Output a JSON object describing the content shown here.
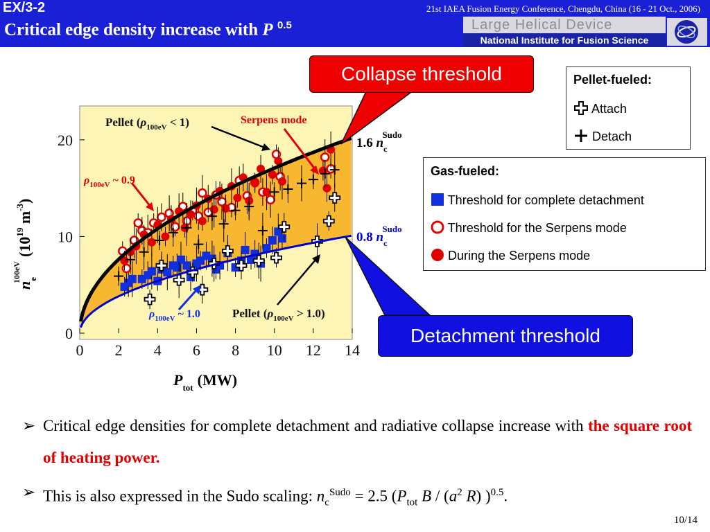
{
  "header": {
    "slide_id": "EX/3-2",
    "conference": "21st IAEA Fusion Energy Conference, Chengdu, China (16 - 21 Oct., 2006)",
    "title": "Critical edge density increase with ",
    "title_var": "P",
    "title_exp": "0.5",
    "logo_line1": "Large Helical Device",
    "logo_line2": "National Institute for Fusion Science"
  },
  "callouts": {
    "collapse": "Collapse threshold",
    "detachment": "Detachment threshold"
  },
  "pellet_legend": {
    "title": "Pellet-fueled:",
    "attach": "Attach",
    "detach": "Detach"
  },
  "gas_legend": {
    "title": "Gas-fueled:",
    "complete_detachment": "Threshold for complete detachment",
    "serpens_threshold": "Threshold for the Serpens mode",
    "during_serpens": "During the Serpens mode"
  },
  "chart_data": {
    "type": "scatter",
    "xlabel": "P",
    "xlabel_sub": "tot",
    "xlabel_unit": "(MW)",
    "ylabel": "n",
    "ylabel_sub": "e",
    "ylabel_sup": "100eV",
    "ylabel_unit": "(10",
    "ylabel_unit_exp": "19",
    "ylabel_unit_rest": " m",
    "ylabel_unit_exp2": "-3",
    "ylabel_unit_close": ")",
    "xlim": [
      0,
      14
    ],
    "ylim": [
      0,
      23.5
    ],
    "xticks": [
      "0",
      "2",
      "4",
      "6",
      "8",
      "10",
      "12",
      "14"
    ],
    "yticks": [
      "0",
      "10",
      "20"
    ],
    "curves": [
      {
        "name": "1.6 n_c^Sudo",
        "label_main": "1.6 ",
        "label_var": "n",
        "label_sub": "c",
        "label_sup": "Sudo",
        "coef": 5.4,
        "color": "#000000"
      },
      {
        "name": "0.8 n_c^Sudo",
        "label_main": "0.8 ",
        "label_var": "n",
        "label_sub": "c",
        "label_sup": "Sudo",
        "coef": 2.7,
        "color": "#0000cc"
      }
    ],
    "annotations": {
      "pellet_low_a": "Pellet (",
      "pellet_low_rho": "ρ",
      "pellet_low_sub": "100eV",
      "pellet_low_b": " < 1)",
      "serpens": "Serpens mode",
      "rho_09_sub": "100eV",
      "rho_09_val": " ~ 0.9",
      "rho_10_sub": "100eV",
      "rho_10_val": " ~ 1.0",
      "pellet_high_a": "Pellet (",
      "pellet_high_sub": "100eV",
      "pellet_high_b": " > 1.0)"
    },
    "series": [
      {
        "name": "Threshold for complete detachment",
        "marker": "square",
        "color": "#1030e0",
        "x": [
          2.3,
          2.5,
          2.7,
          3.2,
          3.5,
          3.7,
          4.0,
          4.2,
          4.5,
          4.8,
          5.0,
          5.2,
          5.5,
          5.7,
          6.0,
          6.2,
          6.5,
          6.8,
          7.0,
          7.2,
          7.6,
          8.0,
          8.3,
          8.5,
          8.8,
          9.0,
          9.3,
          9.6,
          9.9,
          10.2,
          10.4
        ],
        "y": [
          4.8,
          5.2,
          5.6,
          5.6,
          6.0,
          6.4,
          5.4,
          6.6,
          6.3,
          7.0,
          6.8,
          7.6,
          7.0,
          5.8,
          7.2,
          7.5,
          8.0,
          7.7,
          6.6,
          7.0,
          8.3,
          6.8,
          7.5,
          8.6,
          7.6,
          8.2,
          7.2,
          8.8,
          9.6,
          10.5,
          9.8
        ]
      },
      {
        "name": "Threshold for the Serpens mode",
        "marker": "open-circle",
        "color": "#e00000",
        "x": [
          2.2,
          2.4,
          2.8,
          3.0,
          3.2,
          3.5,
          3.8,
          4.2,
          4.6,
          4.9,
          5.3,
          5.5,
          5.8,
          6.1,
          6.3,
          6.6,
          7.0,
          7.3,
          7.8,
          8.2,
          8.6,
          9.0,
          9.4,
          9.8,
          10.1,
          10.3,
          12.6,
          12.9
        ],
        "y": [
          8.5,
          6.7,
          9.6,
          11.4,
          10.6,
          10.4,
          11.4,
          12.0,
          12.4,
          11.0,
          13.1,
          11.6,
          12.7,
          12.1,
          14.5,
          12.5,
          14.3,
          13.6,
          13.0,
          15.8,
          14.2,
          15.6,
          14.6,
          13.8,
          18.5,
          16.2,
          18.2,
          17.0
        ]
      },
      {
        "name": "During the Serpens mode",
        "marker": "circle",
        "color": "#e00000",
        "x": [
          2.3,
          2.6,
          2.9,
          3.3,
          3.7,
          4.0,
          4.4,
          4.7,
          5.1,
          5.4,
          5.7,
          6.0,
          6.3,
          6.6,
          6.9,
          7.2,
          7.5,
          7.8,
          8.1,
          8.4,
          8.7,
          9.0,
          9.3,
          9.6,
          9.9,
          10.2,
          10.4,
          12.5,
          12.7,
          12.9
        ],
        "y": [
          7.5,
          8.4,
          9.0,
          10.2,
          9.4,
          11.2,
          10.0,
          11.8,
          12.6,
          10.9,
          12.3,
          13.2,
          11.6,
          13.9,
          12.8,
          14.7,
          12.9,
          15.2,
          14.0,
          16.1,
          13.7,
          15.5,
          17.0,
          14.6,
          16.4,
          17.8,
          15.7,
          16.8,
          15.0,
          19.0
        ]
      },
      {
        "name": "Attach",
        "marker": "open-plus",
        "color": "#000000",
        "x": [
          3.6,
          4.2,
          5.1,
          5.8,
          6.3,
          6.9,
          7.6,
          8.3,
          9.2,
          10.1,
          10.5,
          12.2,
          12.8,
          13.1
        ],
        "y": [
          3.5,
          7.0,
          5.5,
          6.3,
          4.5,
          7.2,
          8.5,
          7.0,
          7.5,
          7.8,
          11.0,
          9.5,
          11.6,
          14.0
        ]
      },
      {
        "name": "Detach",
        "marker": "plus",
        "color": "#000000",
        "x": [
          2.0,
          2.6,
          3.3,
          4.1,
          4.8,
          5.5,
          6.1,
          6.8,
          7.4,
          8.0,
          8.7,
          9.4,
          10.0,
          10.7,
          11.4,
          12.0,
          12.6,
          13.1
        ],
        "y": [
          5.9,
          7.6,
          8.4,
          9.6,
          10.4,
          10.9,
          9.2,
          12.1,
          11.3,
          12.7,
          13.1,
          10.6,
          14.6,
          14.9,
          15.5,
          15.9,
          16.5,
          16.9
        ]
      }
    ]
  },
  "bullets": {
    "b1_text": "Critical edge densities for complete detachment and radiative collapse increase with ",
    "b1_highlight": "the square root of heating power.",
    "b2_text": "This is also expressed in the Sudo scaling: ",
    "b2_n": "n",
    "b2_nsub": "c",
    "b2_nsup": "Sudo",
    "b2_eq": " = 2.5 (",
    "b2_P": "P",
    "b2_Psub": "tot",
    "b2_B": " B",
    "b2_slash": " / (",
    "b2_a": "a",
    "b2_asup": "2",
    "b2_R": " R",
    "b2_close": ") )",
    "b2_exp": "0.5",
    "b2_end": ".",
    "arrow": "➢"
  },
  "page": {
    "number": "10/14"
  }
}
